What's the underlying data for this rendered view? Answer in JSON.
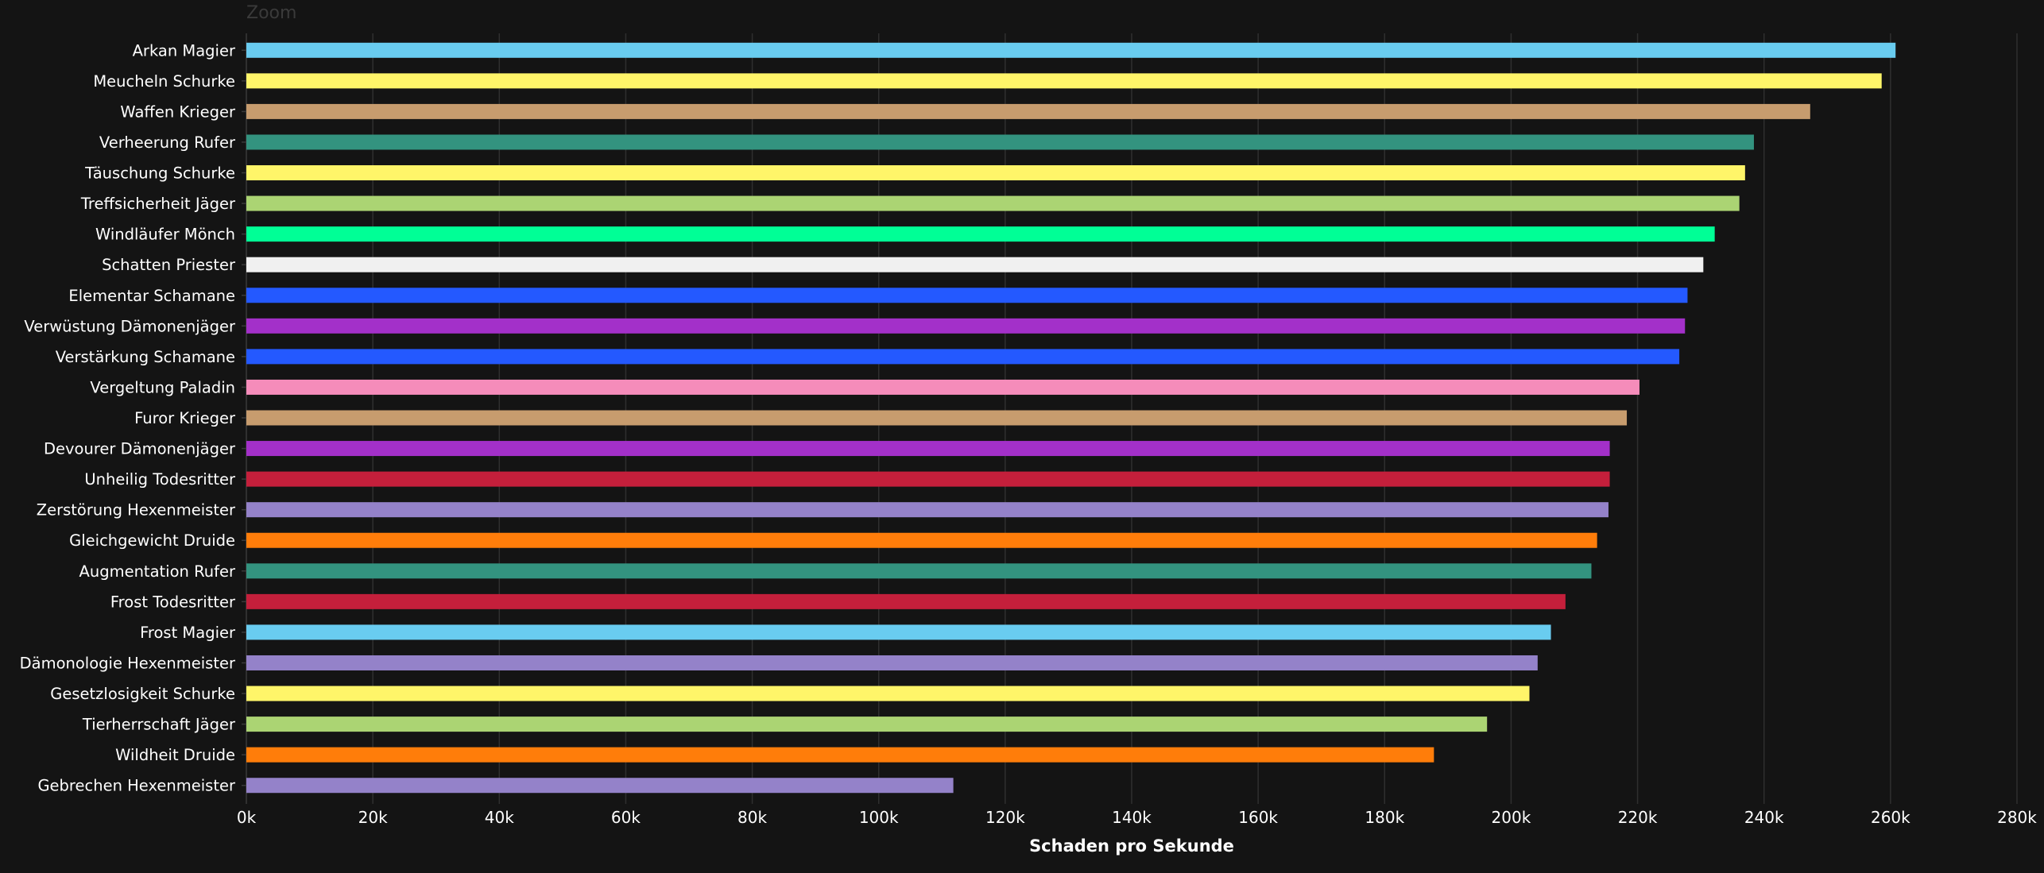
{
  "zoom_label": "Zoom",
  "chart_data": {
    "type": "bar",
    "orientation": "horizontal",
    "title": "",
    "xlabel": "Schaden pro Sekunde",
    "ylabel": "",
    "xlim": [
      0,
      280000
    ],
    "x_ticks": [
      0,
      20000,
      40000,
      60000,
      80000,
      100000,
      120000,
      140000,
      160000,
      180000,
      200000,
      220000,
      240000,
      260000,
      280000
    ],
    "x_tick_labels": [
      "0k",
      "20k",
      "40k",
      "60k",
      "80k",
      "100k",
      "120k",
      "140k",
      "160k",
      "180k",
      "200k",
      "220k",
      "240k",
      "260k",
      "280k"
    ],
    "grid": true,
    "legend": "none",
    "categories": [
      "Arkan Magier",
      "Meucheln Schurke",
      "Waffen Krieger",
      "Verheerung Rufer",
      "Täuschung Schurke",
      "Treffsicherheit Jäger",
      "Windläufer Mönch",
      "Schatten Priester",
      "Elementar Schamane",
      "Verwüstung Dämonenjäger",
      "Verstärkung Schamane",
      "Vergeltung Paladin",
      "Furor Krieger",
      "Devourer Dämonenjäger",
      "Unheilig Todesritter",
      "Zerstörung Hexenmeister",
      "Gleichgewicht Druide",
      "Augmentation Rufer",
      "Frost Todesritter",
      "Frost Magier",
      "Dämonologie Hexenmeister",
      "Gesetzlosigkeit Schurke",
      "Tierherrschaft Jäger",
      "Wildheit Druide",
      "Gebrechen Hexenmeister"
    ],
    "values": [
      260800,
      258600,
      247300,
      238400,
      237000,
      236100,
      232200,
      230400,
      227900,
      227500,
      226600,
      220300,
      218300,
      215600,
      215600,
      215400,
      213600,
      212700,
      208600,
      206300,
      204200,
      202900,
      196200,
      187800,
      111800
    ],
    "colors": [
      "#69ccf0",
      "#fff569",
      "#c79c6e",
      "#33937f",
      "#fff569",
      "#abd473",
      "#00ff96",
      "#f0f0f0",
      "#2459ff",
      "#a330c9",
      "#2459ff",
      "#f58cba",
      "#c79c6e",
      "#a330c9",
      "#c41f3b",
      "#9482c9",
      "#ff7d0a",
      "#33937f",
      "#c41f3b",
      "#69ccf0",
      "#9482c9",
      "#fff569",
      "#abd473",
      "#ff7d0a",
      "#9482c9"
    ],
    "colors_style": {
      "background": "#141414",
      "grid": "#2f2f2f",
      "text": "#ffffff"
    }
  }
}
